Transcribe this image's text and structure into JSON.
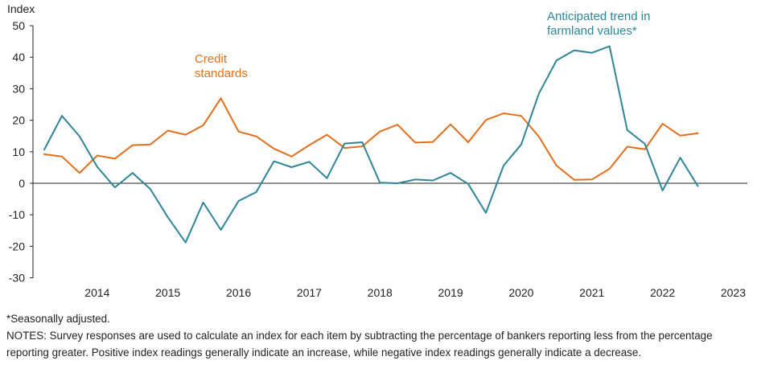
{
  "chart_data": {
    "type": "line",
    "ylabel": "Index",
    "ylim": [
      -30,
      50
    ],
    "yticks": [
      50,
      40,
      30,
      20,
      10,
      0,
      -10,
      -20,
      -30
    ],
    "x_tick_labels": [
      "2014",
      "2015",
      "2016",
      "2017",
      "2018",
      "2019",
      "2020",
      "2021",
      "2022",
      "2023"
    ],
    "x_start_year": 2013.75,
    "x_step": 0.25,
    "series": [
      {
        "name": "Credit standards",
        "label_lines": [
          "Credit",
          "standards"
        ],
        "color": "#E26F1B",
        "values": [
          9.2,
          8.5,
          3.3,
          8.8,
          7.8,
          12.1,
          12.3,
          16.7,
          15.4,
          18.4,
          27,
          16.4,
          14.9,
          11,
          8.5,
          12.1,
          15.4,
          11.2,
          11.7,
          16.4,
          18.6,
          12.9,
          13.1,
          18.7,
          13,
          20.1,
          22.2,
          21.4,
          14.8,
          5.6,
          1.1,
          1.2,
          4.6,
          11.6,
          10.8,
          18.9,
          15.1,
          15.9
        ]
      },
      {
        "name": "Anticipated trend in farmland values*",
        "label_lines": [
          "Anticipated trend in",
          "farmland values*"
        ],
        "color": "#2E8599",
        "values": [
          10.7,
          21.4,
          14.9,
          5.2,
          -1.3,
          3.3,
          -1.8,
          -10.8,
          -18.8,
          -6.1,
          -14.8,
          -5.6,
          -2.8,
          7,
          5.1,
          6.8,
          1.6,
          12.6,
          13,
          0.2,
          0,
          1.2,
          0.9,
          3.3,
          -0.2,
          -9.4,
          5.6,
          12.3,
          28.5,
          39,
          42.2,
          41.4,
          43.5,
          16.9,
          12.5,
          -2.3,
          8.1,
          -0.9
        ]
      }
    ]
  },
  "notes": {
    "footnote": "*Seasonally adjusted.",
    "text": "NOTES: Survey responses are used to calculate an index for each item by subtracting the percentage of bankers reporting less from the percentage reporting greater. Positive index readings generally indicate an increase, while negative index readings generally indicate a decrease."
  }
}
